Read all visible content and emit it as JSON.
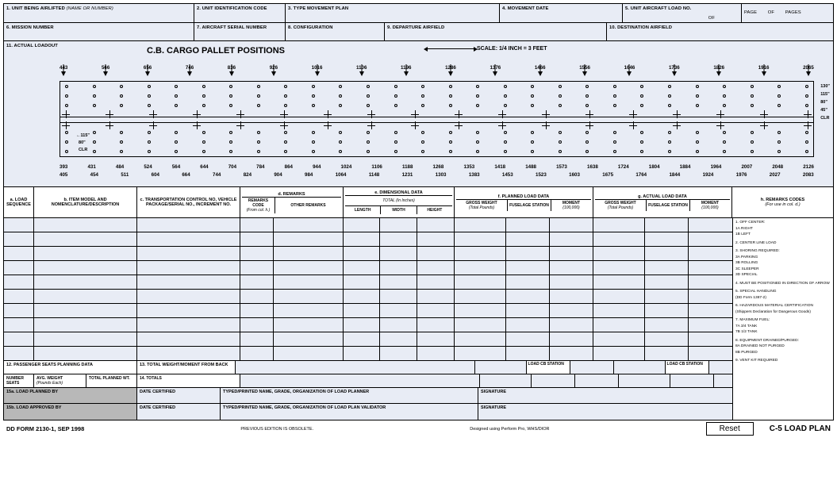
{
  "form_id": "DD FORM 2130-1, SEP 1998",
  "form_title": "C-5 LOAD PLAN",
  "obsolete": "PREVIOUS EDITION IS OBSOLETE.",
  "designer": "Designed using Perform Pro, WHS/DIOR",
  "reset_label": "Reset",
  "fields": {
    "f1": "1.  UNIT BEING AIRLIFTED",
    "f1n": "(Name or Number)",
    "f2": "2.  UNIT IDENTIFICATION CODE",
    "f3": "3.  TYPE MOVEMENT PLAN",
    "f4": "4.  MOVEMENT DATE",
    "f5": "5.  UNIT AIRCRAFT LOAD NO.",
    "of": "OF",
    "page": "PAGE",
    "pages": "PAGES",
    "f6": "6.  MISSION NUMBER",
    "f7": "7.  AIRCRAFT SERIAL NUMBER",
    "f8": "8.  CONFIGURATION",
    "f9": "9.  DEPARTURE AIRFIELD",
    "f10": "10. DESTINATION AIRFIELD",
    "f11": "11. ACTUAL LOADOUT"
  },
  "diagram": {
    "title": "C.B. CARGO PALLET POSITIONS",
    "scale": "SCALE:  1/4 INCH  =  3 FEET",
    "top_stations": [
      "443",
      "566",
      "656",
      "746",
      "836",
      "926",
      "1016",
      "1106",
      "1196",
      "1286",
      "1376",
      "1466",
      "1556",
      "1646",
      "1736",
      "1826",
      "1916",
      "2065"
    ],
    "bottom_stations_1": [
      "393",
      "431",
      "484",
      "524",
      "564",
      "644",
      "704",
      "784",
      "864",
      "944",
      "1024",
      "1106",
      "1188",
      "1268",
      "1353",
      "1418",
      "1488",
      "1573",
      "1638",
      "1724",
      "1804",
      "1884",
      "1964",
      "2007",
      "2048",
      "2126"
    ],
    "bottom_stations_2": [
      "405",
      "454",
      "511",
      "604",
      "664",
      "744",
      "824",
      "904",
      "984",
      "1064",
      "1148",
      "1231",
      "1303",
      "1383",
      "1453",
      "1523",
      "1603",
      "1675",
      "1764",
      "1844",
      "1924",
      "1976",
      "2027",
      "2083"
    ],
    "right_dims": [
      "130\"",
      "115\"",
      "80\"",
      "45\"",
      "CLR"
    ],
    "left_dims": [
      "115\"",
      "80\"",
      "CLR"
    ],
    "tie_count": 28,
    "cross_count": 18
  },
  "table": {
    "a": "a. LOAD SEQUENCE",
    "b": "b.  ITEM MODEL AND NOMENCLATURE/DESCRIPTION",
    "c": "c. TRANSPORTATION CONTROL NO, VEHICLE PACKAGE/SERIAL NO., INCREMENT NO.",
    "d": "d.  REMARKS",
    "d1": "REMARKS CODE",
    "d1n": "(From col. h.)",
    "d2": "OTHER REMARKS",
    "e": "e.  DIMENSIONAL DATA",
    "et": "TOTAL (In Inches)",
    "e1": "LENGTH",
    "e2": "WIDTH",
    "e3": "HEIGHT",
    "f": "f.  PLANNED LOAD DATA",
    "f1": "GROSS WEIGHT",
    "f1n": "(Total Pounds)",
    "f2": "FUSELAGE STATION",
    "f3": "MOMENT",
    "f3n": "(100,000)",
    "g": "g.  ACTUAL LOAD DATA",
    "h": "h.  REMARKS CODES",
    "hn": "(For use in col. d.)",
    "rows": 10
  },
  "remarks_codes": [
    "1. OFF CENTER:\n 1A  RIGHT\n 1B  LEFT",
    "2. CENTER LINE LOAD",
    "3. SHORING REQUIRED:\n 3A  PARKING\n 3B  ROLLING\n 3C  SLEEPER\n 3D  SPECIAL",
    "4. MUST BE POSITIONED IN DIRECTION OF ARROW",
    "5. SPECIAL HANDLING\n(DD Form 1387-2)",
    "6. HAZARDOUS MATERIAL CERTIFICATION\n(Shippers Declaration for Dangerous Goods)",
    "7. MAXIMUM FUEL:\n 7A  3/4 TANK\n 7B  1/2 TANK",
    "8. EQUIPMENT DRAINED/PURGED:\n 8A  DRAINED NOT PURGED\n 8B  PURGED",
    "9. VENT KIT REQUIRED"
  ],
  "b12": {
    "title": "12. PASSENGER SEATS PLANNING DATA",
    "c1": "NUMBER SEATS",
    "c2": "AVG. WEIGHT",
    "c2n": "(Pounds Each)",
    "c3": "TOTAL PLANNED WT."
  },
  "b13": "13. TOTAL WEIGHT/MOMENT FROM BACK",
  "b14": "14. TOTALS",
  "loadcb": "LOAD CB STATION",
  "b15a": "15a. LOAD PLANNED BY",
  "b15b": "15b. LOAD APPROVED BY",
  "date_cert": "DATE CERTIFIED",
  "typed_planner": "TYPED/PRINTED NAME, GRADE, ORGANIZATION OF LOAD PLANNER",
  "typed_validator": "TYPED/PRINTED NAME, GRADE, ORGANIZATION OF LOAD PLAN VALIDATOR",
  "signature": "SIGNATURE"
}
